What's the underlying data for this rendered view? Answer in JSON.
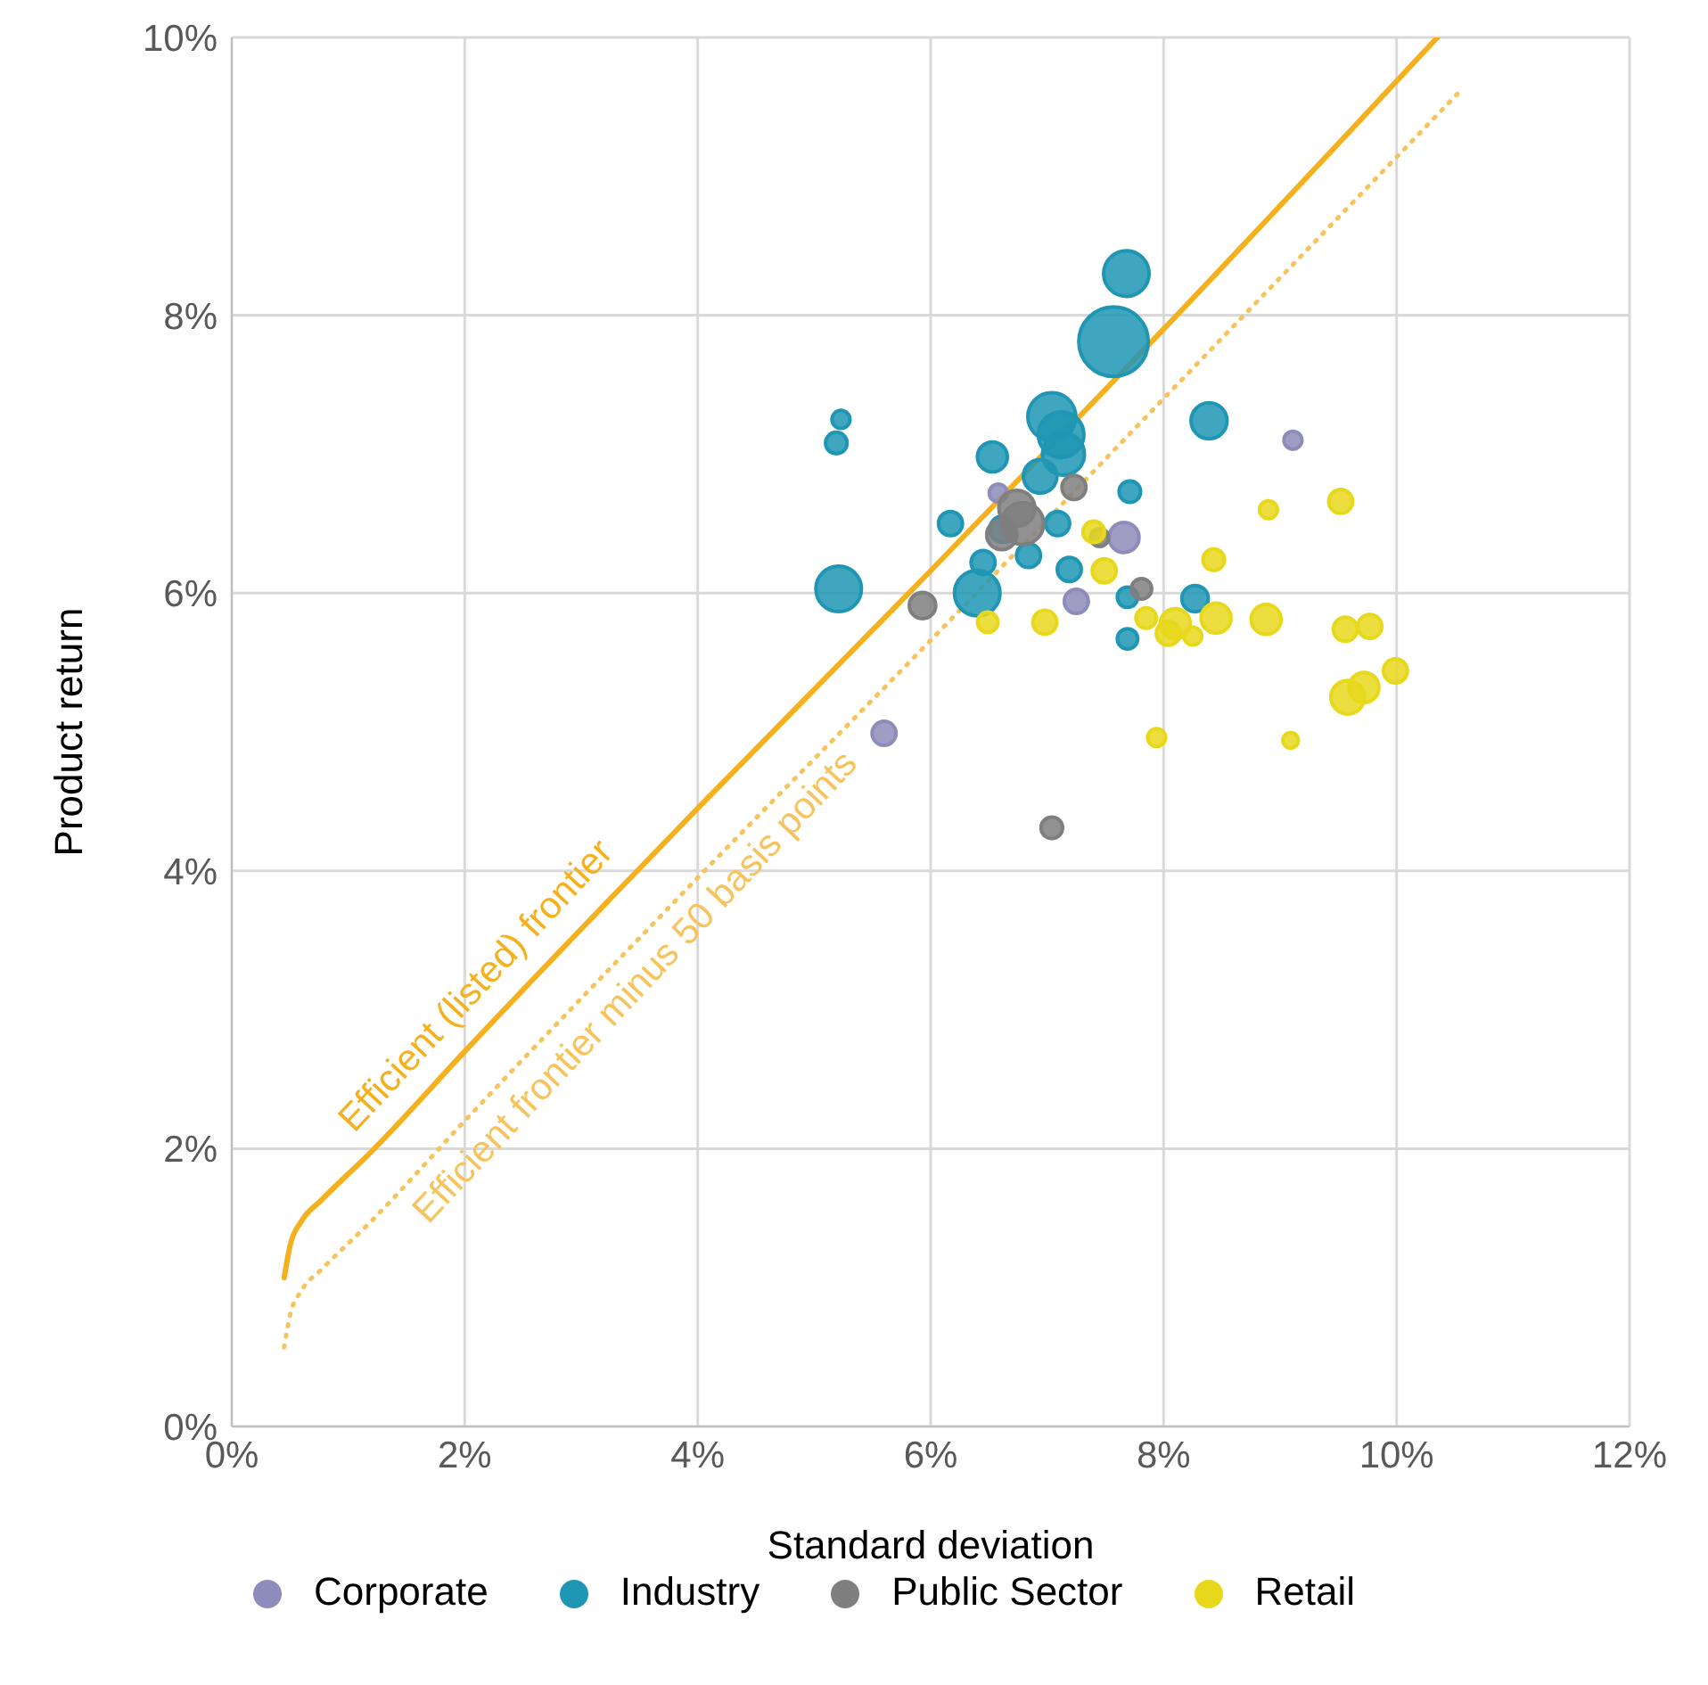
{
  "chart_data": {
    "type": "bubble",
    "xlabel": "Standard deviation",
    "ylabel": "Product return",
    "xlim": [
      0,
      12
    ],
    "xticks": [
      {
        "value": 0,
        "label": "0%"
      },
      {
        "value": 2,
        "label": "2%"
      },
      {
        "value": 4,
        "label": "4%"
      },
      {
        "value": 6,
        "label": "6%"
      },
      {
        "value": 8,
        "label": "8%"
      },
      {
        "value": 10,
        "label": "10%"
      },
      {
        "value": 12,
        "label": "12%"
      }
    ],
    "ylim": [
      0,
      10
    ],
    "yticks": [
      {
        "value": 0,
        "label": "0%"
      },
      {
        "value": 2,
        "label": "2%"
      },
      {
        "value": 4,
        "label": "4%"
      },
      {
        "value": 6,
        "label": "6%"
      },
      {
        "value": 8,
        "label": "8%"
      },
      {
        "value": 10,
        "label": "10%"
      }
    ],
    "grid": true,
    "legend": "bottom",
    "marker": "circle",
    "series": [
      {
        "name": "Corporate",
        "color": "#8e8cba",
        "x": [
          6.58,
          7.66,
          7.25,
          9.11,
          5.6
        ],
        "values": [
          6.72,
          6.4,
          5.94,
          7.1,
          4.99
        ],
        "sizes": [
          0.067,
          0.186,
          0.119,
          0.067,
          0.119
        ]
      },
      {
        "name": "Industry",
        "color": "#1f96b4",
        "x": [
          7.68,
          7.57,
          5.23,
          5.19,
          8.39,
          7.04,
          7.12,
          7.14,
          6.53,
          6.94,
          7.71,
          6.17,
          6.62,
          7.09,
          6.45,
          6.84,
          7.19,
          5.21,
          6.4,
          7.69,
          8.27,
          7.69
        ],
        "values": [
          8.3,
          7.81,
          7.25,
          7.08,
          7.24,
          7.27,
          7.14,
          7.0,
          6.98,
          6.84,
          6.73,
          6.5,
          6.46,
          6.5,
          6.22,
          6.27,
          6.17,
          6.03,
          6.0,
          5.97,
          5.96,
          5.67
        ],
        "sizes": [
          0.429,
          1,
          0.067,
          0.096,
          0.268,
          0.476,
          0.429,
          0.364,
          0.186,
          0.233,
          0.096,
          0.119,
          0.144,
          0.119,
          0.119,
          0.119,
          0.119,
          0.429,
          0.429,
          0.086,
          0.144,
          0.086
        ]
      },
      {
        "name": "Public Sector",
        "color": "#7f7f7f",
        "x": [
          7.23,
          6.74,
          6.79,
          6.61,
          7.45,
          7.81,
          5.93,
          7.04
        ],
        "values": [
          6.76,
          6.61,
          6.5,
          6.42,
          6.4,
          6.03,
          5.91,
          4.31
        ],
        "sizes": [
          0.119,
          0.268,
          0.364,
          0.186,
          0.067,
          0.086,
          0.144,
          0.096
        ]
      },
      {
        "name": "Retail",
        "color": "#e8d81c",
        "x": [
          8.9,
          7.4,
          7.49,
          8.43,
          6.49,
          6.98,
          7.85,
          9.52,
          8.1,
          8.04,
          8.25,
          8.45,
          8.88,
          9.56,
          9.77,
          9.99,
          9.58,
          9.72,
          7.94,
          9.09
        ],
        "values": [
          6.6,
          6.44,
          6.16,
          6.24,
          5.79,
          5.79,
          5.82,
          6.66,
          5.78,
          5.71,
          5.69,
          5.82,
          5.81,
          5.74,
          5.76,
          5.44,
          5.25,
          5.32,
          4.96,
          4.94
        ],
        "sizes": [
          0.067,
          0.096,
          0.119,
          0.096,
          0.086,
          0.119,
          0.086,
          0.119,
          0.186,
          0.119,
          0.067,
          0.186,
          0.186,
          0.119,
          0.119,
          0.119,
          0.233,
          0.186,
          0.067,
          0.05
        ]
      },
      {
        "type": "line",
        "name": "Efficient (listed) frontier",
        "color": "#f5b01e",
        "line_style": "solid",
        "marker": "none",
        "x": [
          0.45,
          0.5,
          0.6,
          0.77,
          1.2,
          2,
          4,
          6,
          8,
          10.35
        ],
        "values": [
          1.07,
          1.3,
          1.48,
          1.63,
          1.98,
          2.7,
          4.45,
          6.16,
          7.9,
          10
        ]
      },
      {
        "type": "line",
        "name": "Efficient frontier minus 50 basis points",
        "color": "#f7c35c",
        "line_style": "dotted",
        "marker": "none",
        "x": [
          0.45,
          0.5,
          0.6,
          0.77,
          1.2,
          2,
          4,
          6,
          8,
          10.53
        ],
        "values": [
          0.57,
          0.8,
          0.98,
          1.13,
          1.48,
          2.2,
          3.95,
          5.66,
          7.4,
          9.6
        ]
      }
    ]
  }
}
